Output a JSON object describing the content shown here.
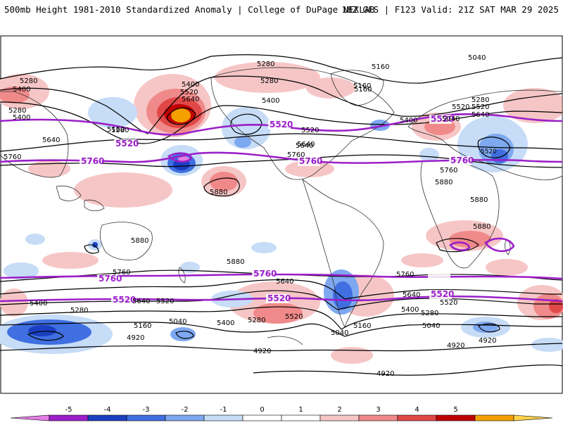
{
  "header": {
    "title": "500mb Height 1981-2010 Standardized Anomaly | College of DuPage NEXLAB",
    "run_info": "18Z GFS | F123 Valid: 21Z SAT MAR 29 2025"
  },
  "colorbar": {
    "ticks": [
      "-5",
      "-4",
      "-3",
      "-2",
      "-1",
      "0",
      "1",
      "2",
      "3",
      "4",
      "5"
    ],
    "colors": [
      "#e37ee3",
      "#9b1fc9",
      "#1c3fc1",
      "#3f6fe0",
      "#7ea8f0",
      "#c6dcf7",
      "#ffffff",
      "#ffffff",
      "#f6c6c6",
      "#f08a8a",
      "#e04848",
      "#c00000",
      "#f4a000",
      "#ffd24a"
    ]
  },
  "contours": {
    "purple_labels": [
      "5520",
      "5520",
      "5520",
      "5520",
      "5760",
      "5760",
      "5760",
      "5760",
      "5760",
      "5520",
      "5520",
      "5520"
    ],
    "black_labels": [
      "5280",
      "5400",
      "5280",
      "5160",
      "5640",
      "5760",
      "5280",
      "5400",
      "5640",
      "5520",
      "5400",
      "5280",
      "5160",
      "5040",
      "5160",
      "5280",
      "5520",
      "5640",
      "5400",
      "5640",
      "5760",
      "5880",
      "5880",
      "5760",
      "5520",
      "5640",
      "5280",
      "5400",
      "5880",
      "5880",
      "5880",
      "5880",
      "5760",
      "5640",
      "5760",
      "5400",
      "5280",
      "5160",
      "5040",
      "4920",
      "5640",
      "5520",
      "5400",
      "5280",
      "5520",
      "5040",
      "5160",
      "4920",
      "5640",
      "5520",
      "5400",
      "5280",
      "5040",
      "4920",
      "4920",
      "4920",
      "5160",
      "5040",
      "5520"
    ]
  }
}
